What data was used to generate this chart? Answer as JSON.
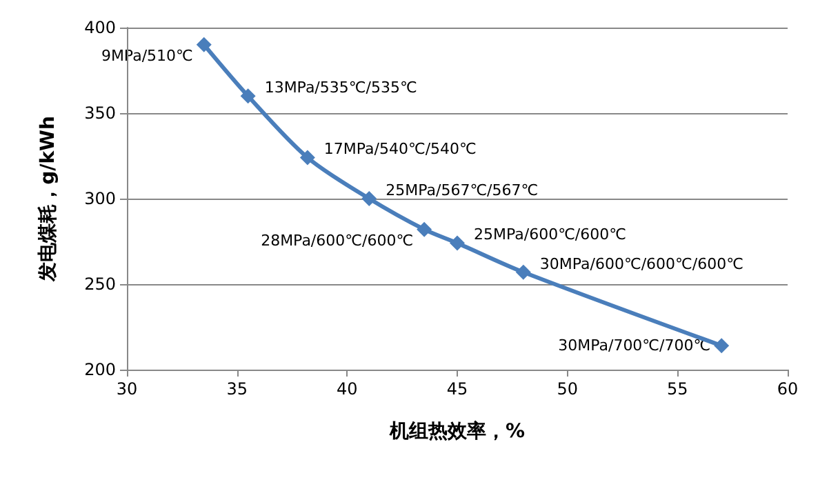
{
  "chart_data": {
    "type": "line",
    "xlabel": "机组热效率，%",
    "ylabel": "发电煤耗，g/kWh",
    "x": [
      33.5,
      35.5,
      38.2,
      41.0,
      43.5,
      45.0,
      48.0,
      57.0
    ],
    "series": [
      {
        "color": "#4a7ebb",
        "values": [
          390,
          360,
          324,
          300,
          282,
          274,
          257,
          214
        ]
      }
    ],
    "xlim": [
      30,
      60
    ],
    "xticks": [
      30,
      35,
      40,
      45,
      50,
      55,
      60
    ],
    "ylim": [
      200,
      400
    ],
    "yticks": [
      200,
      250,
      300,
      350,
      400
    ],
    "grid": "y",
    "marker": "diamond",
    "line_style": "solid",
    "annotations": [
      {
        "text": "9MPa/510℃",
        "x": 33.5,
        "y": 390
      },
      {
        "text": "13MPa/535℃/535℃",
        "x": 35.5,
        "y": 360
      },
      {
        "text": "17MPa/540℃/540℃",
        "x": 38.2,
        "y": 324
      },
      {
        "text": "25MPa/567℃/567℃",
        "x": 41.0,
        "y": 300
      },
      {
        "text": "28MPa/600℃/600℃",
        "x": 43.5,
        "y": 282
      },
      {
        "text": "25MPa/600℃/600℃",
        "x": 45.0,
        "y": 274
      },
      {
        "text": "30MPa/600℃/600℃/600℃",
        "x": 48.0,
        "y": 257
      },
      {
        "text": "30MPa/700℃/700℃",
        "x": 57.0,
        "y": 214
      }
    ]
  }
}
